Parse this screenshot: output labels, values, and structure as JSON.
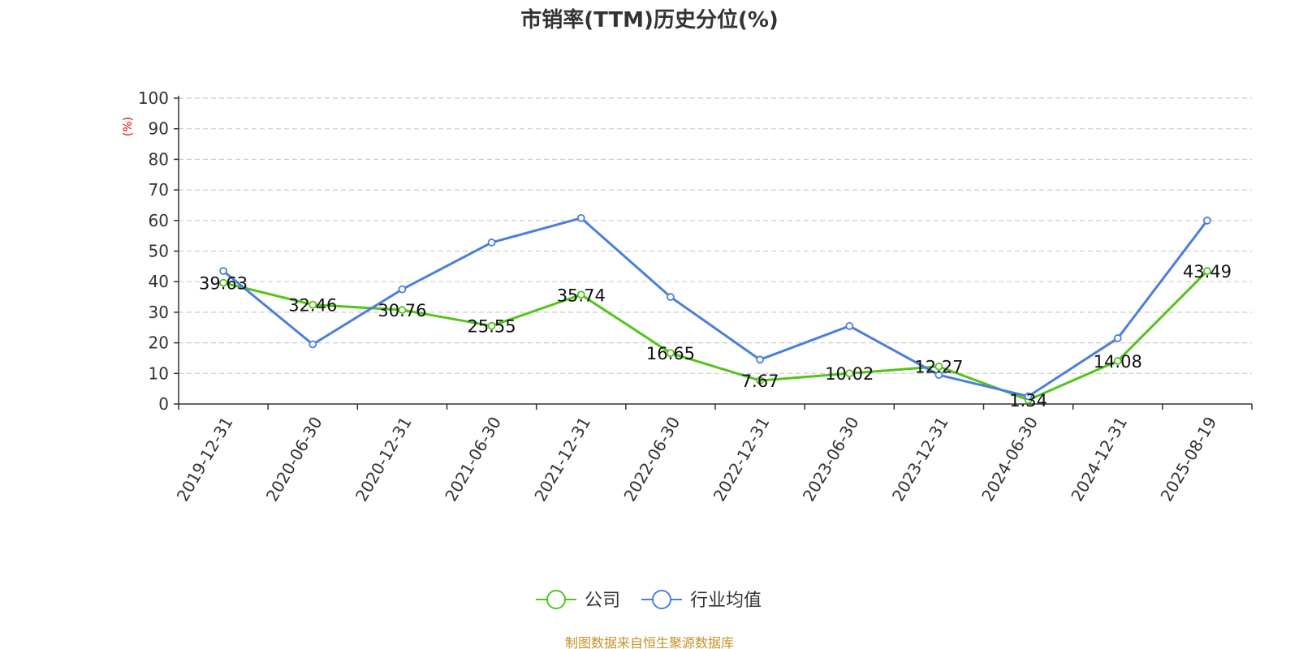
{
  "chart_data": {
    "type": "line",
    "title": "市销率(TTM)历史分位(%)",
    "ylabel": "(%)",
    "ylim": [
      0,
      100
    ],
    "yticks": [
      0,
      10,
      20,
      30,
      40,
      50,
      60,
      70,
      80,
      90,
      100
    ],
    "grid": true,
    "legend_position": "bottom-center",
    "categories": [
      "2019-12-31",
      "2020-06-30",
      "2020-12-31",
      "2021-06-30",
      "2021-12-31",
      "2022-06-30",
      "2022-12-31",
      "2023-06-30",
      "2023-12-31",
      "2024-06-30",
      "2024-12-31",
      "2025-08-19"
    ],
    "series": [
      {
        "name": "公司",
        "color": "#52c41a",
        "values": [
          39.63,
          32.46,
          30.76,
          25.55,
          35.74,
          16.65,
          7.67,
          10.02,
          12.27,
          1.34,
          14.08,
          43.49
        ],
        "labels": [
          "39.63",
          "32.46",
          "30.76",
          "25.55",
          "35.74",
          "16.65",
          "7.67",
          "10.02",
          "12.27",
          "1.34",
          "14.08",
          "43.49"
        ]
      },
      {
        "name": "行业均值",
        "color": "#4a7fdc",
        "values": [
          43.5,
          19.5,
          37.5,
          52.8,
          60.8,
          35.0,
          14.5,
          25.5,
          9.5,
          2.5,
          21.5,
          60.0
        ]
      }
    ]
  },
  "source": "制图数据来自恒生聚源数据库",
  "colors": {
    "ylabel": "#e60000",
    "source": "#c8902a",
    "axis": "#333333",
    "grid": "#cccccc"
  }
}
